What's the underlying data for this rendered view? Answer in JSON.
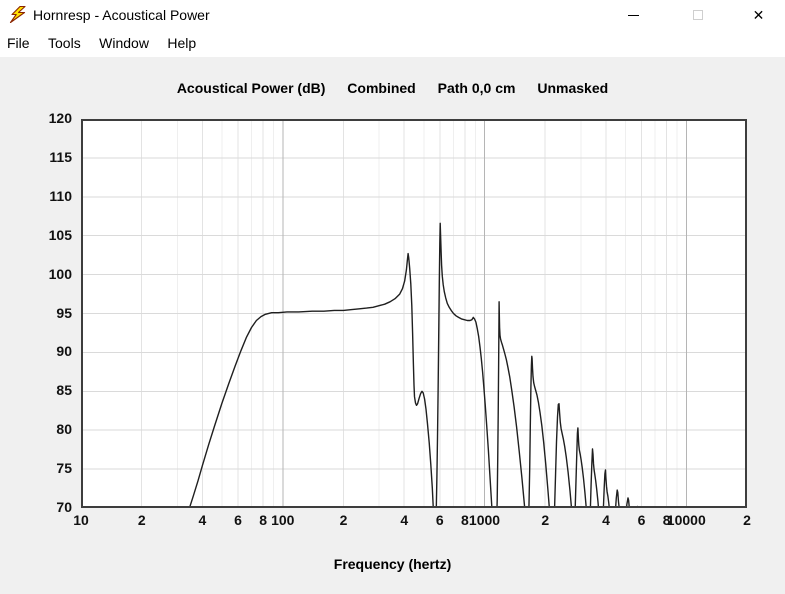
{
  "window": {
    "title": "Hornresp - Acoustical Power",
    "controls": {
      "minimize": "minimize",
      "maximize": "maximize (disabled)",
      "close": "close"
    }
  },
  "icons": {
    "app": "lightning-bolt",
    "close_glyph": "✕"
  },
  "menu": {
    "items": [
      {
        "label": "File"
      },
      {
        "label": "Tools"
      },
      {
        "label": "Window"
      },
      {
        "label": "Help"
      }
    ]
  },
  "chart_header": {
    "parts": [
      "Acoustical Power (dB)",
      "Combined",
      "Path 0,0 cm",
      "Unmasked"
    ]
  },
  "chart_data": {
    "type": "line",
    "title": "Acoustical Power (dB)  Combined  Path 0,0 cm  Unmasked",
    "xlabel": "Frequency (hertz)",
    "ylabel": "Acoustical Power (dB)",
    "x_scale": "log",
    "xlim": [
      10,
      20000
    ],
    "ylim": [
      70,
      120
    ],
    "grid": true,
    "legend": "none",
    "y_ticks": [
      120,
      115,
      110,
      105,
      100,
      95,
      90,
      85,
      80,
      75,
      70
    ],
    "x_ticks": [
      {
        "f": 10,
        "label": "10"
      },
      {
        "f": 20,
        "label": "2"
      },
      {
        "f": 40,
        "label": "4"
      },
      {
        "f": 60,
        "label": "6"
      },
      {
        "f": 80,
        "label": "8"
      },
      {
        "f": 100,
        "label": "100"
      },
      {
        "f": 200,
        "label": "2"
      },
      {
        "f": 400,
        "label": "4"
      },
      {
        "f": 600,
        "label": "6"
      },
      {
        "f": 800,
        "label": "8"
      },
      {
        "f": 1000,
        "label": "1000"
      },
      {
        "f": 2000,
        "label": "2"
      },
      {
        "f": 4000,
        "label": "4"
      },
      {
        "f": 6000,
        "label": "6"
      },
      {
        "f": 8000,
        "label": "8"
      },
      {
        "f": 10000,
        "label": "10000"
      },
      {
        "f": 20000,
        "label": "2"
      }
    ],
    "style": {
      "plot_bg": "#ffffff",
      "border": "#3d3d3d",
      "grid_h": "#dadada",
      "grid_minor_even": "#e3e3e3",
      "grid_minor_odd": "#efefef",
      "grid_decade": "#b5b5b5",
      "curve": "#1f1f1f",
      "window_bg": "#f0f0f0",
      "titlebar_bg": "#ffffff",
      "icon_yellow": "#ffdf00",
      "icon_outline": "#8b2500"
    },
    "series": [
      {
        "name": "Combined",
        "color": "#1f1f1f",
        "points": [
          [
            34,
            69.5
          ],
          [
            36,
            71.5
          ],
          [
            38,
            73.5
          ],
          [
            40,
            75.5
          ],
          [
            43,
            78.2
          ],
          [
            46,
            80.6
          ],
          [
            50,
            83.5
          ],
          [
            54,
            86
          ],
          [
            58,
            88.2
          ],
          [
            62,
            90.2
          ],
          [
            66,
            91.9
          ],
          [
            70,
            93.2
          ],
          [
            74,
            94.1
          ],
          [
            78,
            94.6
          ],
          [
            82,
            94.9
          ],
          [
            88,
            95.1
          ],
          [
            95,
            95.1
          ],
          [
            105,
            95.2
          ],
          [
            120,
            95.2
          ],
          [
            140,
            95.3
          ],
          [
            160,
            95.3
          ],
          [
            180,
            95.4
          ],
          [
            200,
            95.4
          ],
          [
            220,
            95.5
          ],
          [
            240,
            95.6
          ],
          [
            260,
            95.7
          ],
          [
            280,
            95.8
          ],
          [
            300,
            96
          ],
          [
            320,
            96.2
          ],
          [
            340,
            96.5
          ],
          [
            360,
            96.9
          ],
          [
            380,
            97.5
          ],
          [
            392,
            98.2
          ],
          [
            402,
            99.2
          ],
          [
            410,
            100.6
          ],
          [
            415,
            101.9
          ],
          [
            418,
            102.7
          ],
          [
            421,
            102.2
          ],
          [
            426,
            100.8
          ],
          [
            431,
            98.8
          ],
          [
            436,
            96
          ],
          [
            440,
            92.5
          ],
          [
            444,
            88.5
          ],
          [
            447,
            85.8
          ],
          [
            450,
            84.3
          ],
          [
            455,
            83.5
          ],
          [
            460,
            83.2
          ],
          [
            466,
            83.4
          ],
          [
            474,
            84.1
          ],
          [
            482,
            84.7
          ],
          [
            490,
            85
          ],
          [
            497,
            84.8
          ],
          [
            505,
            84
          ],
          [
            513,
            82.7
          ],
          [
            522,
            80.8
          ],
          [
            532,
            78.4
          ],
          [
            542,
            75.6
          ],
          [
            551,
            72.6
          ],
          [
            559,
            69.4
          ],
          [
            562,
            68
          ],
          [
            572,
            68
          ],
          [
            577,
            70
          ],
          [
            581,
            74
          ],
          [
            585,
            79
          ],
          [
            589,
            85
          ],
          [
            593,
            92
          ],
          [
            597,
            99
          ],
          [
            600,
            104
          ],
          [
            603,
            106.6
          ],
          [
            606,
            105
          ],
          [
            609,
            103
          ],
          [
            613,
            101.2
          ],
          [
            618,
            99.8
          ],
          [
            624,
            98.7
          ],
          [
            632,
            97.8
          ],
          [
            642,
            97
          ],
          [
            654,
            96.3
          ],
          [
            668,
            95.8
          ],
          [
            684,
            95.4
          ],
          [
            702,
            95
          ],
          [
            722,
            94.7
          ],
          [
            744,
            94.5
          ],
          [
            768,
            94.3
          ],
          [
            794,
            94.2
          ],
          [
            822,
            94.1
          ],
          [
            848,
            94.1
          ],
          [
            866,
            94.2
          ],
          [
            880,
            94.5
          ],
          [
            892,
            94.3
          ],
          [
            906,
            93.9
          ],
          [
            920,
            93.1
          ],
          [
            936,
            92
          ],
          [
            950,
            90.7
          ],
          [
            964,
            89.2
          ],
          [
            978,
            87.5
          ],
          [
            992,
            85.6
          ],
          [
            1008,
            83.3
          ],
          [
            1025,
            80.6
          ],
          [
            1045,
            77.4
          ],
          [
            1065,
            74
          ],
          [
            1085,
            70.4
          ],
          [
            1098,
            68
          ],
          [
            1148,
            68
          ],
          [
            1156,
            71
          ],
          [
            1163,
            76
          ],
          [
            1169,
            82
          ],
          [
            1174,
            88
          ],
          [
            1178,
            93
          ],
          [
            1181,
            96.5
          ],
          [
            1184,
            95
          ],
          [
            1188,
            93.2
          ],
          [
            1194,
            92.2
          ],
          [
            1202,
            91.7
          ],
          [
            1214,
            91.3
          ],
          [
            1228,
            90.9
          ],
          [
            1244,
            90.4
          ],
          [
            1262,
            89.8
          ],
          [
            1282,
            89.1
          ],
          [
            1306,
            88.1
          ],
          [
            1334,
            86.8
          ],
          [
            1366,
            85.1
          ],
          [
            1402,
            83
          ],
          [
            1442,
            80.4
          ],
          [
            1486,
            77.3
          ],
          [
            1532,
            73.9
          ],
          [
            1578,
            70.3
          ],
          [
            1598,
            68
          ],
          [
            1652,
            68
          ],
          [
            1662,
            70.5
          ],
          [
            1674,
            75
          ],
          [
            1686,
            80.5
          ],
          [
            1698,
            85.5
          ],
          [
            1708,
            88.3
          ],
          [
            1716,
            89.5
          ],
          [
            1722,
            89.2
          ],
          [
            1730,
            88
          ],
          [
            1740,
            86.9
          ],
          [
            1754,
            86.1
          ],
          [
            1772,
            85.6
          ],
          [
            1794,
            85.1
          ],
          [
            1820,
            84.5
          ],
          [
            1850,
            83.6
          ],
          [
            1884,
            82.3
          ],
          [
            1922,
            80.6
          ],
          [
            1964,
            78.4
          ],
          [
            2010,
            75.7
          ],
          [
            2060,
            72.5
          ],
          [
            2110,
            69.1
          ],
          [
            2130,
            68
          ],
          [
            2212,
            68
          ],
          [
            2228,
            70.5
          ],
          [
            2250,
            74.5
          ],
          [
            2275,
            78.5
          ],
          [
            2300,
            81.7
          ],
          [
            2322,
            83.3
          ],
          [
            2340,
            83.4
          ],
          [
            2356,
            82.2
          ],
          [
            2374,
            81
          ],
          [
            2396,
            80.2
          ],
          [
            2424,
            79.6
          ],
          [
            2458,
            78.9
          ],
          [
            2498,
            77.9
          ],
          [
            2544,
            76.5
          ],
          [
            2596,
            74.6
          ],
          [
            2652,
            72.2
          ],
          [
            2710,
            69.4
          ],
          [
            2736,
            68
          ],
          [
            2800,
            68
          ],
          [
            2816,
            70
          ],
          [
            2840,
            73.5
          ],
          [
            2866,
            77
          ],
          [
            2888,
            79.6
          ],
          [
            2904,
            80.3
          ],
          [
            2918,
            79.2
          ],
          [
            2934,
            78.1
          ],
          [
            2954,
            77.4
          ],
          [
            2980,
            76.9
          ],
          [
            3012,
            76.2
          ],
          [
            3050,
            75.2
          ],
          [
            3094,
            73.8
          ],
          [
            3144,
            72
          ],
          [
            3198,
            69.8
          ],
          [
            3228,
            68
          ],
          [
            3330,
            68
          ],
          [
            3348,
            70
          ],
          [
            3376,
            73
          ],
          [
            3406,
            75.9
          ],
          [
            3430,
            77.6
          ],
          [
            3448,
            76.9
          ],
          [
            3468,
            75.7
          ],
          [
            3492,
            74.9
          ],
          [
            3522,
            74.3
          ],
          [
            3558,
            73.5
          ],
          [
            3600,
            72.4
          ],
          [
            3648,
            70.9
          ],
          [
            3700,
            69.1
          ],
          [
            3726,
            68
          ],
          [
            3860,
            68
          ],
          [
            3884,
            70
          ],
          [
            3920,
            72.6
          ],
          [
            3952,
            74.4
          ],
          [
            3978,
            74.9
          ],
          [
            3998,
            73.9
          ],
          [
            4022,
            72.8
          ],
          [
            4052,
            72.1
          ],
          [
            4088,
            71.5
          ],
          [
            4130,
            70.6
          ],
          [
            4178,
            69.4
          ],
          [
            4220,
            68.2
          ],
          [
            4240,
            68
          ],
          [
            4420,
            68
          ],
          [
            4452,
            69.6
          ],
          [
            4500,
            71.3
          ],
          [
            4544,
            72.3
          ],
          [
            4580,
            72
          ],
          [
            4616,
            70.8
          ],
          [
            4658,
            69.9
          ],
          [
            4706,
            69.1
          ],
          [
            4756,
            68.3
          ],
          [
            4780,
            68
          ],
          [
            4980,
            68
          ],
          [
            5020,
            69.2
          ],
          [
            5080,
            70.5
          ],
          [
            5140,
            71.3
          ],
          [
            5180,
            71
          ],
          [
            5225,
            69.9
          ],
          [
            5275,
            69
          ],
          [
            5330,
            68.2
          ],
          [
            5360,
            68
          ],
          [
            5560,
            68
          ],
          [
            5640,
            69
          ],
          [
            5730,
            70.2
          ],
          [
            5800,
            69.5
          ],
          [
            5880,
            68.4
          ],
          [
            5940,
            68
          ],
          [
            6200,
            67.8
          ]
        ]
      }
    ],
    "xaxis_title": "Frequency (hertz)"
  }
}
